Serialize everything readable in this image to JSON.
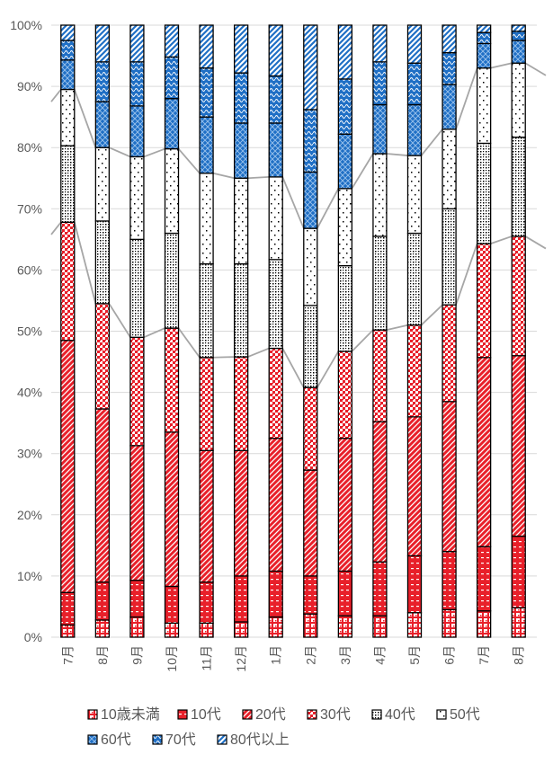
{
  "chart_data": {
    "type": "bar",
    "stacked": "percent",
    "title": "",
    "xlabel": "",
    "ylabel": "",
    "ylim": [
      0,
      100
    ],
    "yticks": [
      "0%",
      "10%",
      "20%",
      "30%",
      "40%",
      "50%",
      "60%",
      "70%",
      "80%",
      "90%",
      "100%"
    ],
    "grid": true,
    "legend_position": "bottom",
    "categories": [
      "7月",
      "8月",
      "9月",
      "10月",
      "11月",
      "12月",
      "1月",
      "2月",
      "3月",
      "4月",
      "5月",
      "6月",
      "7月",
      "8月"
    ],
    "series": [
      {
        "name": "10歳未満",
        "color": "#e8202a",
        "pattern": "cross",
        "values": [
          2.0,
          2.8,
          3.3,
          2.3,
          2.3,
          2.5,
          3.3,
          3.8,
          3.5,
          3.5,
          4.0,
          4.5,
          4.3,
          4.8
        ]
      },
      {
        "name": "10代",
        "color": "#e8202a",
        "pattern": "dash",
        "values": [
          5.3,
          6.2,
          6.0,
          6.0,
          6.7,
          7.5,
          7.5,
          6.2,
          7.3,
          8.8,
          9.3,
          9.5,
          10.5,
          11.7
        ]
      },
      {
        "name": "20代",
        "color": "#e8202a",
        "pattern": "diagonal",
        "values": [
          41.2,
          28.3,
          22.0,
          25.2,
          21.5,
          20.5,
          21.7,
          17.3,
          21.7,
          22.9,
          22.7,
          24.5,
          30.9,
          29.5
        ]
      },
      {
        "name": "30代",
        "color": "#e8202a",
        "pattern": "dots-large",
        "values": [
          19.3,
          17.2,
          17.7,
          17.0,
          15.2,
          15.3,
          14.7,
          13.5,
          14.2,
          15.0,
          15.0,
          15.8,
          18.6,
          19.5
        ]
      },
      {
        "name": "40代",
        "color": "#000000",
        "pattern": "dots-dense",
        "values": [
          12.5,
          13.5,
          16.0,
          15.5,
          15.3,
          15.2,
          14.5,
          13.4,
          14.0,
          15.3,
          15.0,
          15.7,
          16.4,
          16.2
        ]
      },
      {
        "name": "50代",
        "color": "#000000",
        "pattern": "dots-sparse",
        "values": [
          9.2,
          12.0,
          13.5,
          13.8,
          14.8,
          14.0,
          13.5,
          12.6,
          12.6,
          13.5,
          12.7,
          13.0,
          12.3,
          12.1
        ]
      },
      {
        "name": "60代",
        "color": "#1f6fc5",
        "pattern": "lattice",
        "values": [
          4.8,
          7.5,
          8.3,
          8.2,
          9.2,
          9.0,
          8.8,
          9.2,
          8.9,
          8.0,
          8.3,
          7.3,
          4.0,
          3.7
        ]
      },
      {
        "name": "70代",
        "color": "#1f6fc5",
        "pattern": "wave",
        "values": [
          3.2,
          6.5,
          7.2,
          6.8,
          8.0,
          8.2,
          7.7,
          10.2,
          9.0,
          7.0,
          6.8,
          5.2,
          1.8,
          1.5
        ]
      },
      {
        "name": "80代以上",
        "color": "#1f6fc5",
        "pattern": "diagonal-wide",
        "values": [
          2.5,
          6.0,
          6.0,
          5.2,
          7.0,
          7.8,
          8.3,
          13.8,
          8.8,
          6.0,
          6.2,
          4.5,
          1.2,
          1.0
        ]
      }
    ],
    "series_lines": [
      "30代",
      "50代"
    ],
    "series_line_color": "#a6a6a6"
  }
}
